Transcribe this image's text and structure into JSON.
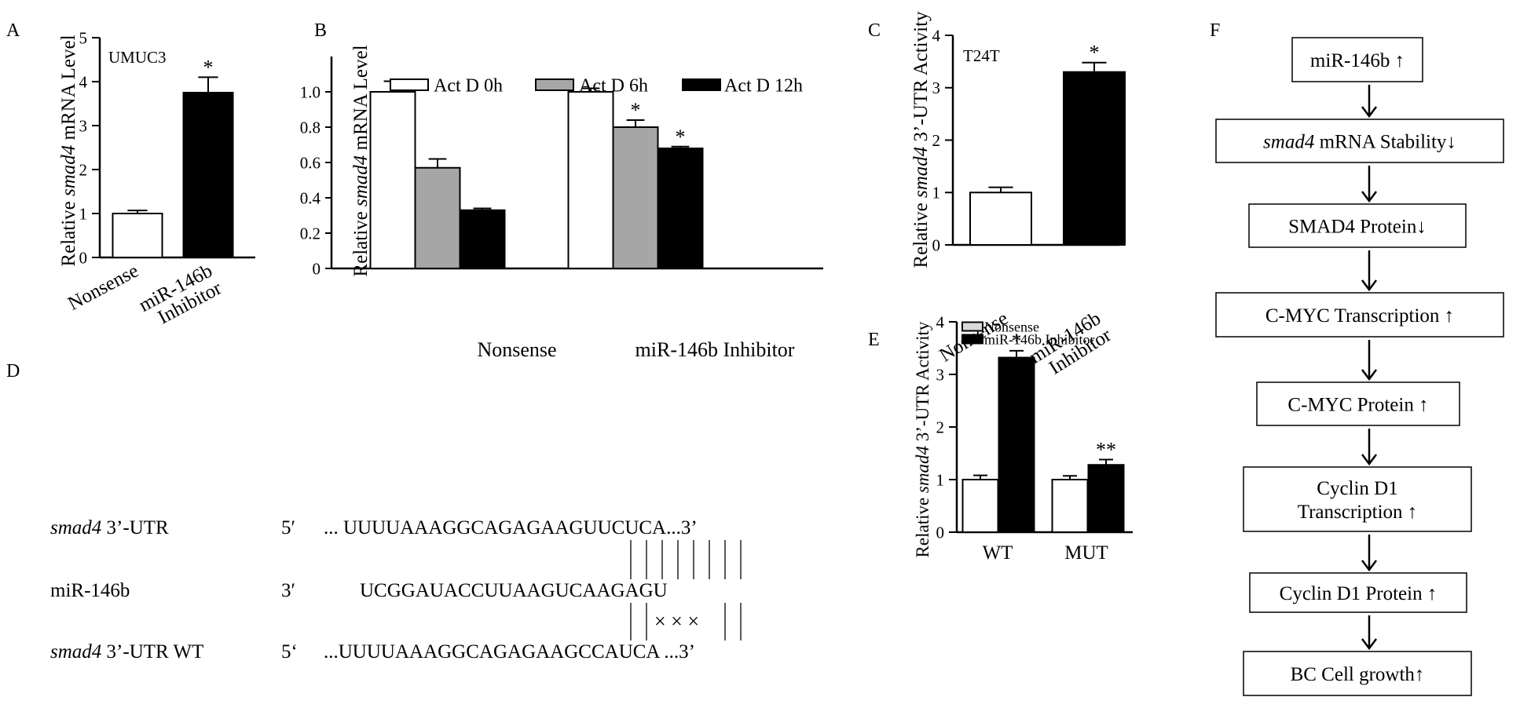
{
  "panel_letters": {
    "a": "A",
    "b": "B",
    "c": "C",
    "d": "D",
    "e": "E",
    "f": "F"
  },
  "chart_data": [
    {
      "panel": "A",
      "type": "bar",
      "annotation": "UMUC3",
      "ylabel_prefix": "Relative ",
      "ylabel_gene": "smad4",
      "ylabel_suffix": "  mRNA Level",
      "ylim": [
        0,
        5
      ],
      "yticks": [
        "0",
        "1",
        "2",
        "3",
        "4",
        "5"
      ],
      "categories": [
        [
          "Nonsense"
        ],
        [
          "miR-146b",
          "Inhibitor"
        ]
      ],
      "values": [
        1.0,
        3.75
      ],
      "errors": [
        0.07,
        0.35
      ],
      "colors": [
        "#ffffff",
        "#000000"
      ],
      "significance": [
        "",
        "*"
      ]
    },
    {
      "panel": "B",
      "type": "bar",
      "ylabel_prefix": "Relative ",
      "ylabel_gene": "smad4",
      "ylabel_suffix": " mRNA Level",
      "ylim": [
        0,
        1.2
      ],
      "yticks": [
        "0",
        "0.2",
        "0.4",
        "0.6",
        "0.8",
        "1.0"
      ],
      "categories": [
        "Nonsense",
        "miR-146b Inhibitor"
      ],
      "legend": [
        "Act D 0h",
        "Act D 6h",
        "Act D 12h"
      ],
      "series": [
        {
          "name": "Act D 0h",
          "color": "#ffffff",
          "values": [
            1.0,
            1.0
          ],
          "errors": [
            0.06,
            0.02
          ],
          "significance": [
            "",
            ""
          ]
        },
        {
          "name": "Act D 6h",
          "color": "#a6a6a6",
          "values": [
            0.57,
            0.8
          ],
          "errors": [
            0.05,
            0.04
          ],
          "significance": [
            "",
            "*"
          ]
        },
        {
          "name": "Act D 12h",
          "color": "#000000",
          "values": [
            0.33,
            0.68
          ],
          "errors": [
            0.01,
            0.01
          ],
          "significance": [
            "",
            "*"
          ]
        }
      ]
    },
    {
      "panel": "C",
      "type": "bar",
      "annotation": "T24T",
      "ylabel_prefix": "Relative ",
      "ylabel_gene": "smad4",
      "ylabel_suffix": " 3’-UTR Activity",
      "ylim": [
        0,
        4
      ],
      "yticks": [
        "0",
        "1",
        "2",
        "3",
        "4"
      ],
      "categories": [
        [
          "Nonsense"
        ],
        [
          "miR-146b",
          "Inhibitor"
        ]
      ],
      "values": [
        1.0,
        3.3
      ],
      "errors": [
        0.1,
        0.18
      ],
      "colors": [
        "#ffffff",
        "#000000"
      ],
      "significance": [
        "",
        "*"
      ]
    },
    {
      "panel": "E",
      "type": "bar",
      "ylabel_prefix": "Relative ",
      "ylabel_gene": "smad4",
      "ylabel_suffix": " 3’-UTR Activity",
      "ylim": [
        0,
        4
      ],
      "yticks": [
        "0",
        "1",
        "2",
        "3",
        "4"
      ],
      "categories": [
        "WT",
        "MUT"
      ],
      "legend": [
        "Nonsense",
        "miR-146b Inhibitor"
      ],
      "series": [
        {
          "name": "Nonsense",
          "color": "#ffffff",
          "values": [
            1.0,
            1.0
          ],
          "errors": [
            0.08,
            0.07
          ],
          "significance": [
            "",
            ""
          ]
        },
        {
          "name": "miR-146b Inhibitor",
          "color": "#000000",
          "values": [
            3.32,
            1.28
          ],
          "errors": [
            0.13,
            0.1
          ],
          "significance": [
            "*",
            "**"
          ]
        }
      ]
    }
  ],
  "panel_d": {
    "rows": [
      {
        "gene": "smad4",
        "label_rest": " 3’-UTR",
        "end": "5′",
        "seq": "... UUUUAAAGGCAGAGAAGUUCUCA...3’"
      },
      {
        "gene": "",
        "label_rest": "miR-146b",
        "end": "3′",
        "seq": "UCGGAUACCUUAAGUCAAGAGU"
      },
      {
        "gene": "smad4",
        "label_rest": " 3’-UTR WT",
        "end": "5‘",
        "seq": "...UUUUAAAGGCAGAGAAGCCAUCA ...3’"
      }
    ],
    "mismatch_marks": "× × ×"
  },
  "panel_f": {
    "steps": [
      {
        "lines": [
          "miR-146b ↑"
        ]
      },
      {
        "gene": "smad4",
        "lines": [
          " mRNA Stability↓"
        ]
      },
      {
        "lines": [
          "SMAD4 Protein↓"
        ]
      },
      {
        "lines": [
          "C-MYC Transcription ↑"
        ]
      },
      {
        "lines": [
          "C-MYC Protein ↑"
        ]
      },
      {
        "lines": [
          "Cyclin D1",
          "Transcription ↑"
        ]
      },
      {
        "lines": [
          "Cyclin D1 Protein ↑"
        ]
      },
      {
        "lines": [
          "BC Cell growth↑"
        ]
      }
    ]
  }
}
